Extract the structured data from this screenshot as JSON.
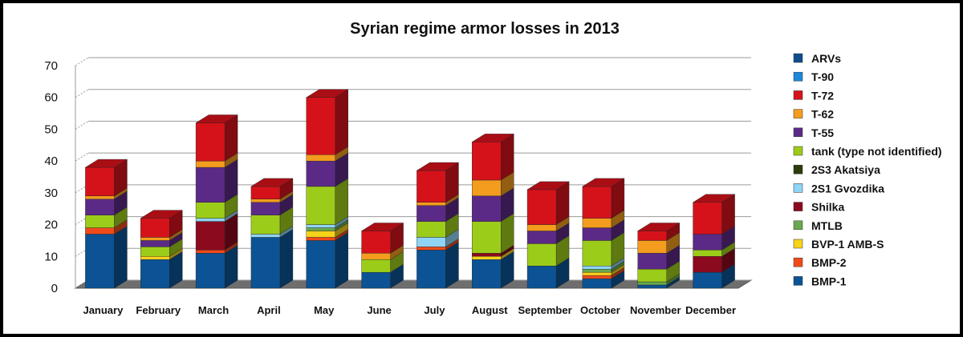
{
  "chart_data": {
    "type": "bar",
    "stacked": true,
    "three_d": true,
    "title": "Syrian regime armor losses in 2013",
    "xlabel": "",
    "ylabel": "",
    "ylim": [
      0,
      70
    ],
    "yticks": [
      0,
      10,
      20,
      30,
      40,
      50,
      60,
      70
    ],
    "grid": true,
    "legend_position": "right",
    "categories": [
      "January",
      "February",
      "March",
      "April",
      "May",
      "June",
      "July",
      "August",
      "September",
      "October",
      "November",
      "December"
    ],
    "series": [
      {
        "name": "BMP-1",
        "color": "#0b5394",
        "values": [
          17,
          9,
          11,
          16,
          15,
          5,
          12,
          9,
          7,
          3,
          1,
          5
        ]
      },
      {
        "name": "BMP-2",
        "color": "#f04a1a",
        "values": [
          2,
          0,
          1,
          0,
          1,
          0,
          1,
          0,
          0,
          1,
          0,
          0
        ]
      },
      {
        "name": "BVP-1 AMB-S",
        "color": "#f7d21b",
        "values": [
          0,
          1,
          0,
          0,
          2,
          0,
          0,
          1,
          0,
          1,
          0,
          0
        ]
      },
      {
        "name": "MTLB",
        "color": "#6aa84f",
        "values": [
          0,
          0,
          0,
          0,
          1,
          0,
          0,
          0,
          0,
          1,
          1,
          0
        ]
      },
      {
        "name": "Shilka",
        "color": "#8b0a1e",
        "values": [
          0,
          0,
          9,
          0,
          0,
          0,
          0,
          1,
          0,
          0,
          0,
          5
        ]
      },
      {
        "name": "2S1 Gvozdika",
        "color": "#8fd4f5",
        "values": [
          0,
          0,
          1,
          1,
          1,
          0,
          3,
          0,
          0,
          1,
          0,
          0
        ]
      },
      {
        "name": "2S3 Akatsiya",
        "color": "#2b3b0c",
        "values": [
          0,
          0,
          0,
          0,
          0,
          0,
          0,
          0,
          0,
          0,
          0,
          0
        ]
      },
      {
        "name": "tank (type not identified)",
        "color": "#9ccc1a",
        "values": [
          4,
          3,
          5,
          6,
          12,
          4,
          5,
          10,
          7,
          8,
          4,
          2
        ]
      },
      {
        "name": "T-55",
        "color": "#5b2a86",
        "values": [
          5,
          2,
          11,
          4,
          8,
          0,
          5,
          8,
          4,
          4,
          5,
          5
        ]
      },
      {
        "name": "T-62",
        "color": "#f39c1e",
        "values": [
          1,
          1,
          2,
          1,
          2,
          2,
          1,
          5,
          2,
          3,
          4,
          0
        ]
      },
      {
        "name": "T-72",
        "color": "#d5121a",
        "values": [
          9,
          6,
          12,
          4,
          18,
          7,
          10,
          12,
          11,
          10,
          3,
          10
        ]
      },
      {
        "name": "T-90",
        "color": "#1e88d8",
        "values": [
          0,
          0,
          0,
          0,
          0,
          0,
          0,
          0,
          0,
          0,
          0,
          0
        ]
      },
      {
        "name": "ARVs",
        "color": "#0f4d8c",
        "values": [
          0,
          0,
          0,
          0,
          0,
          0,
          0,
          0,
          0,
          0,
          0,
          0
        ]
      }
    ],
    "legend_order": [
      "ARVs",
      "T-90",
      "T-72",
      "T-62",
      "T-55",
      "tank (type not identified)",
      "2S3 Akatsiya",
      "2S1 Gvozdika",
      "Shilka",
      "MTLB",
      "BVP-1 AMB-S",
      "BMP-2",
      "BMP-1"
    ]
  }
}
